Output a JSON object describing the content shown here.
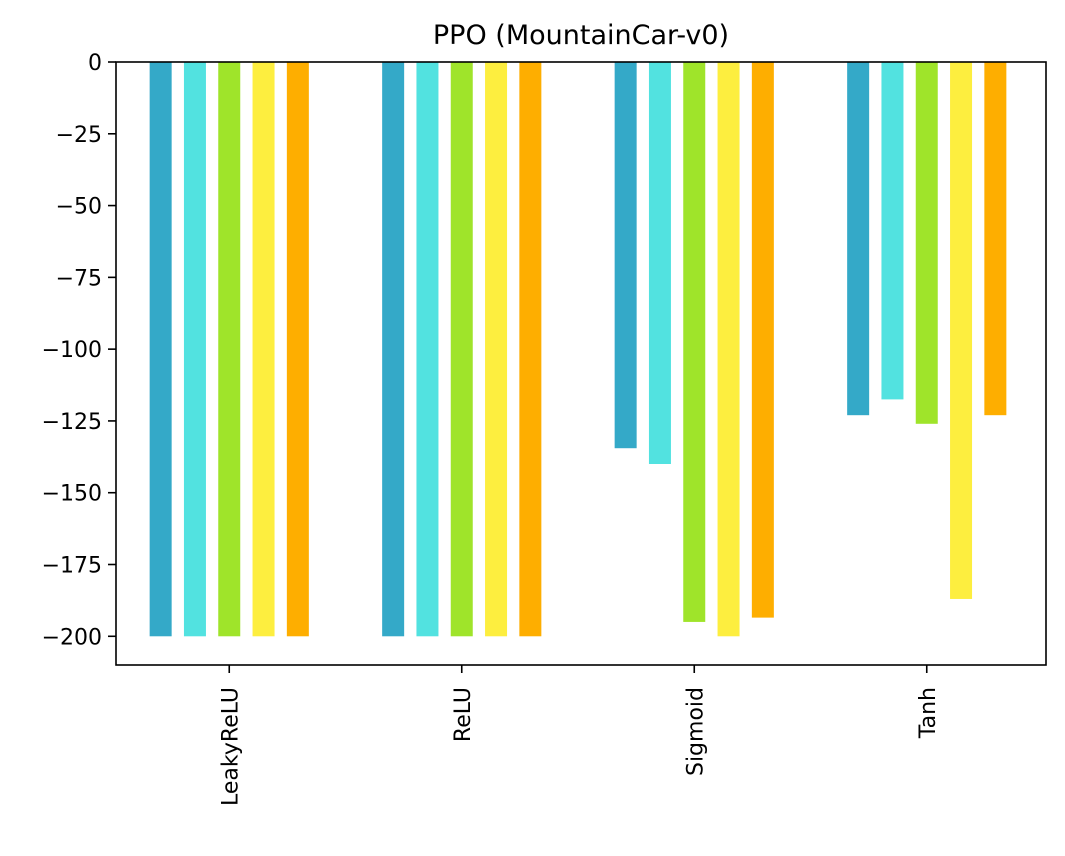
{
  "chart_data": {
    "type": "bar",
    "title": "PPO (MountainCar-v0)",
    "xlabel": "",
    "ylabel": "",
    "categories": [
      "LeakyReLU",
      "ReLU",
      "Sigmoid",
      "Tanh"
    ],
    "series": [
      {
        "color": "#34a9c8",
        "values": [
          -200,
          -200,
          -134.5,
          -123
        ]
      },
      {
        "color": "#52e2e0",
        "values": [
          -200,
          -200,
          -140,
          -117.5
        ]
      },
      {
        "color": "#9fe42a",
        "values": [
          -200,
          -200,
          -195,
          -126
        ]
      },
      {
        "color": "#fdee3f",
        "values": [
          -200,
          -200,
          -200,
          -187
        ]
      },
      {
        "color": "#feae00",
        "values": [
          -200,
          -200,
          -193.5,
          -123
        ]
      }
    ],
    "ylim": [
      -210,
      0
    ],
    "yticks": [
      0,
      -25,
      -50,
      -75,
      -100,
      -125,
      -150,
      -175,
      -200
    ],
    "ytick_labels": [
      "0",
      "−25",
      "−50",
      "−75",
      "−100",
      "−125",
      "−150",
      "−175",
      "−200"
    ],
    "grid": false,
    "legend": "none"
  }
}
